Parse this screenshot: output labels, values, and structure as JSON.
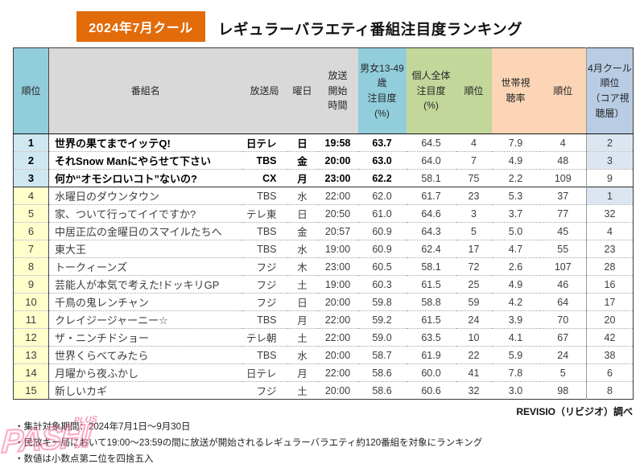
{
  "page": {
    "badge": "2024年7月クール",
    "title": "レギュラーバラエティ番組注目度ランキング"
  },
  "colors": {
    "badge_orange": "#E26B0A",
    "header_cyan": "#92CDDC",
    "header_gray": "#D9D9D9",
    "header_green": "#C4D79B",
    "header_peach": "#FBD5B5",
    "header_blue": "#B8CCE4",
    "rank_top3_bg": "#CFE7F1",
    "rank_other_bg": "#FFFFCC",
    "april_highlight_bg": "#DCE6F1",
    "watermark_pink": "#EE4D7E"
  },
  "table": {
    "headers": {
      "rank": "順位",
      "name": "番組名",
      "network": "放送局",
      "day": "曜日",
      "start": "放送\n開始\n時間",
      "mf1349": "男女13-49\n歳\n注目度\n(%)",
      "personal": "個人全体\n注目度\n(%)",
      "personal_rank": "順位",
      "household": "世帯視\n聴率",
      "household_rank": "順位",
      "april": "4月クール\n順位\n（コア視\n聴層）"
    },
    "rows": [
      {
        "rank": "1",
        "name": "世界の果てまでイッテQ!",
        "network": "日テレ",
        "day": "日",
        "start": "19:58",
        "mf1349": "63.7",
        "personal": "64.5",
        "personal_rank": "4",
        "household": "7.9",
        "household_rank": "4",
        "april": "2",
        "bold": true,
        "april_highlight": true
      },
      {
        "rank": "2",
        "name": "それSnow Manにやらせて下さい",
        "network": "TBS",
        "day": "金",
        "start": "20:00",
        "mf1349": "63.0",
        "personal": "64.0",
        "personal_rank": "7",
        "household": "4.9",
        "household_rank": "48",
        "april": "3",
        "bold": true,
        "april_highlight": true
      },
      {
        "rank": "3",
        "name": "何か“オモシロいコト”ないの?",
        "network": "CX",
        "day": "月",
        "start": "23:00",
        "mf1349": "62.2",
        "personal": "58.1",
        "personal_rank": "75",
        "household": "2.2",
        "household_rank": "109",
        "april": "9",
        "bold": true,
        "april_highlight": false
      },
      {
        "rank": "4",
        "name": "水曜日のダウンタウン",
        "network": "TBS",
        "day": "水",
        "start": "22:00",
        "mf1349": "62.0",
        "personal": "61.7",
        "personal_rank": "23",
        "household": "5.3",
        "household_rank": "37",
        "april": "1",
        "bold": false,
        "april_highlight": true
      },
      {
        "rank": "5",
        "name": "家、ついて行ってイイですか?",
        "network": "テレ東",
        "day": "日",
        "start": "20:50",
        "mf1349": "61.0",
        "personal": "64.6",
        "personal_rank": "3",
        "household": "3.7",
        "household_rank": "77",
        "april": "32",
        "bold": false,
        "april_highlight": false
      },
      {
        "rank": "6",
        "name": "中居正広の金曜日のスマイルたちへ",
        "network": "TBS",
        "day": "金",
        "start": "20:57",
        "mf1349": "60.9",
        "personal": "64.3",
        "personal_rank": "5",
        "household": "5.0",
        "household_rank": "45",
        "april": "4",
        "bold": false,
        "april_highlight": false
      },
      {
        "rank": "7",
        "name": "東大王",
        "network": "TBS",
        "day": "水",
        "start": "19:00",
        "mf1349": "60.9",
        "personal": "62.4",
        "personal_rank": "17",
        "household": "4.7",
        "household_rank": "55",
        "april": "23",
        "bold": false,
        "april_highlight": false
      },
      {
        "rank": "8",
        "name": "トークィーンズ",
        "network": "フジ",
        "day": "木",
        "start": "23:00",
        "mf1349": "60.5",
        "personal": "58.1",
        "personal_rank": "72",
        "household": "2.6",
        "household_rank": "107",
        "april": "28",
        "bold": false,
        "april_highlight": false
      },
      {
        "rank": "9",
        "name": "芸能人が本気で考えた!ドッキリGP",
        "network": "フジ",
        "day": "土",
        "start": "19:00",
        "mf1349": "60.3",
        "personal": "61.5",
        "personal_rank": "25",
        "household": "4.9",
        "household_rank": "46",
        "april": "16",
        "bold": false,
        "april_highlight": false
      },
      {
        "rank": "10",
        "name": "千鳥の鬼レンチャン",
        "network": "フジ",
        "day": "日",
        "start": "20:00",
        "mf1349": "59.8",
        "personal": "58.8",
        "personal_rank": "59",
        "household": "4.2",
        "household_rank": "64",
        "april": "17",
        "bold": false,
        "april_highlight": false
      },
      {
        "rank": "11",
        "name": "クレイジージャーニー☆",
        "network": "TBS",
        "day": "月",
        "start": "22:00",
        "mf1349": "59.2",
        "personal": "61.5",
        "personal_rank": "24",
        "household": "3.9",
        "household_rank": "70",
        "april": "20",
        "bold": false,
        "april_highlight": false
      },
      {
        "rank": "12",
        "name": "ザ・ニンチドショー",
        "network": "テレ朝",
        "day": "土",
        "start": "22:00",
        "mf1349": "59.0",
        "personal": "63.5",
        "personal_rank": "10",
        "household": "4.1",
        "household_rank": "67",
        "april": "42",
        "bold": false,
        "april_highlight": false
      },
      {
        "rank": "13",
        "name": "世界くらべてみたら",
        "network": "TBS",
        "day": "水",
        "start": "20:00",
        "mf1349": "58.7",
        "personal": "61.9",
        "personal_rank": "22",
        "household": "5.9",
        "household_rank": "24",
        "april": "38",
        "bold": false,
        "april_highlight": false
      },
      {
        "rank": "14",
        "name": "月曜から夜ふかし",
        "network": "日テレ",
        "day": "月",
        "start": "22:00",
        "mf1349": "58.6",
        "personal": "60.0",
        "personal_rank": "41",
        "household": "7.8",
        "household_rank": "5",
        "april": "6",
        "bold": false,
        "april_highlight": false
      },
      {
        "rank": "15",
        "name": "新しいカギ",
        "network": "フジ",
        "day": "土",
        "start": "20:00",
        "mf1349": "58.6",
        "personal": "60.6",
        "personal_rank": "32",
        "household": "3.0",
        "household_rank": "98",
        "april": "8",
        "bold": false,
        "april_highlight": false
      }
    ]
  },
  "chart_data": {
    "type": "table",
    "title": "レギュラーバラエティ番組注目度ランキング（2024年7月クール）",
    "columns": [
      "順位",
      "番組名",
      "放送局",
      "曜日",
      "放送開始時間",
      "男女13-49歳注目度(%)",
      "個人全体注目度(%)",
      "個人全体順位",
      "世帯視聴率",
      "世帯視聴率順位",
      "4月クール順位（コア視聴層）"
    ],
    "rows": [
      [
        1,
        "世界の果てまでイッテQ!",
        "日テレ",
        "日",
        "19:58",
        63.7,
        64.5,
        4,
        7.9,
        4,
        2
      ],
      [
        2,
        "それSnow Manにやらせて下さい",
        "TBS",
        "金",
        "20:00",
        63.0,
        64.0,
        7,
        4.9,
        48,
        3
      ],
      [
        3,
        "何か“オモシロいコト”ないの?",
        "CX",
        "月",
        "23:00",
        62.2,
        58.1,
        75,
        2.2,
        109,
        9
      ],
      [
        4,
        "水曜日のダウンタウン",
        "TBS",
        "水",
        "22:00",
        62.0,
        61.7,
        23,
        5.3,
        37,
        1
      ],
      [
        5,
        "家、ついて行ってイイですか?",
        "テレ東",
        "日",
        "20:50",
        61.0,
        64.6,
        3,
        3.7,
        77,
        32
      ],
      [
        6,
        "中居正広の金曜日のスマイルたちへ",
        "TBS",
        "金",
        "20:57",
        60.9,
        64.3,
        5,
        5.0,
        45,
        4
      ],
      [
        7,
        "東大王",
        "TBS",
        "水",
        "19:00",
        60.9,
        62.4,
        17,
        4.7,
        55,
        23
      ],
      [
        8,
        "トークィーンズ",
        "フジ",
        "木",
        "23:00",
        60.5,
        58.1,
        72,
        2.6,
        107,
        28
      ],
      [
        9,
        "芸能人が本気で考えた!ドッキリGP",
        "フジ",
        "土",
        "19:00",
        60.3,
        61.5,
        25,
        4.9,
        46,
        16
      ],
      [
        10,
        "千鳥の鬼レンチャン",
        "フジ",
        "日",
        "20:00",
        59.8,
        58.8,
        59,
        4.2,
        64,
        17
      ],
      [
        11,
        "クレイジージャーニー☆",
        "TBS",
        "月",
        "22:00",
        59.2,
        61.5,
        24,
        3.9,
        70,
        20
      ],
      [
        12,
        "ザ・ニンチドショー",
        "テレ朝",
        "土",
        "22:00",
        59.0,
        63.5,
        10,
        4.1,
        67,
        42
      ],
      [
        13,
        "世界くらべてみたら",
        "TBS",
        "水",
        "20:00",
        58.7,
        61.9,
        22,
        5.9,
        24,
        38
      ],
      [
        14,
        "月曜から夜ふかし",
        "日テレ",
        "月",
        "22:00",
        58.6,
        60.0,
        41,
        7.8,
        5,
        6
      ],
      [
        15,
        "新しいカギ",
        "フジ",
        "土",
        "20:00",
        58.6,
        60.6,
        32,
        3.0,
        98,
        8
      ]
    ]
  },
  "footer": {
    "source": "REVISIO（リビジオ）調べ",
    "notes": [
      "・集計対象期間：2024年7月1日～9月30日",
      "・民放キー局において19:00～23:59の間に放送が開始されるレギュラーバラエティ約120番組を対象にランキング",
      "・数値は小数点第二位を四捨五入"
    ]
  },
  "watermark": {
    "text": "PASH!",
    "sub": "PLUS"
  }
}
